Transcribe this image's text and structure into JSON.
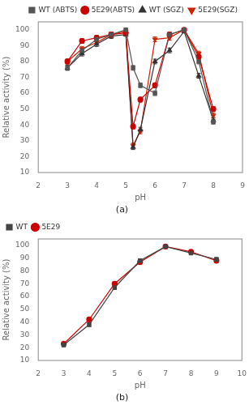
{
  "chart_data": [
    {
      "type": "line",
      "subtitle": "(a)",
      "xlabel": "pH",
      "ylabel": "Relative activity (%)",
      "x": [
        3.0,
        3.5,
        4.0,
        4.5,
        5.0,
        5.25,
        5.5,
        6.0,
        6.5,
        7.0,
        7.5,
        8.0
      ],
      "series": [
        {
          "name": "WT (ABTS)",
          "color": "#555555",
          "marker": "square",
          "line_style": "solid",
          "values": [
            76,
            87,
            94,
            97,
            100,
            76,
            65,
            60,
            97,
            100,
            80,
            42
          ],
          "errors": [
            1.5,
            1.5,
            1.5,
            1.5,
            1.0,
            1.5,
            1.5,
            1.5,
            1.5,
            1.0,
            1.5,
            1.5
          ]
        },
        {
          "name": "5E29(ABTS)",
          "color": "#cc0000",
          "marker": "circle",
          "line_style": "solid",
          "values": [
            80,
            93,
            95,
            97,
            98,
            39,
            56,
            65,
            97,
            100,
            83,
            50
          ],
          "errors": [
            1.5,
            1.5,
            1.5,
            1.5,
            1.0,
            1.5,
            1.5,
            1.5,
            1.5,
            1.0,
            1.5,
            1.5
          ]
        },
        {
          "name": "WT (SGZ)",
          "color": "#333333",
          "marker": "triangle-up",
          "line_style": "solid",
          "values": [
            76,
            85,
            91,
            96,
            97,
            26,
            37,
            80,
            87,
            99,
            71,
            43
          ],
          "errors": [
            1.5,
            1.5,
            1.5,
            1.5,
            1.0,
            1.5,
            1.5,
            1.5,
            1.5,
            1.0,
            1.5,
            1.5
          ]
        },
        {
          "name": "5E29(SGZ)",
          "color": "#cc2200",
          "marker": "triangle-down",
          "line_style": "solid",
          "values": [
            80,
            88,
            92,
            97,
            99,
            27,
            36,
            94,
            95,
            100,
            85,
            46
          ],
          "errors": [
            1.5,
            1.5,
            1.5,
            1.5,
            1.0,
            1.5,
            1.5,
            1.5,
            1.5,
            1.0,
            1.5,
            1.5
          ]
        }
      ],
      "xlim": [
        2,
        9
      ],
      "ylim": [
        10,
        105
      ],
      "xticks": [
        2,
        3,
        4,
        5,
        6,
        7,
        8,
        9
      ],
      "yticks": [
        10,
        20,
        30,
        40,
        50,
        60,
        70,
        80,
        90,
        100
      ],
      "legend": "upper right",
      "grid": false
    },
    {
      "type": "line",
      "subtitle": "(b)",
      "xlabel": "pH",
      "ylabel": "Relative activity (%)",
      "x": [
        3,
        4,
        5,
        6,
        7,
        8,
        9
      ],
      "series": [
        {
          "name": "WT",
          "color": "#444444",
          "marker": "square",
          "line_style": "solid",
          "values": [
            22,
            38,
            67,
            88,
            99,
            94,
            89
          ],
          "errors": [
            1.0,
            1.5,
            1.5,
            1.5,
            1.0,
            1.5,
            1.5
          ]
        },
        {
          "name": "5E29",
          "color": "#cc0000",
          "marker": "circle",
          "line_style": "solid",
          "values": [
            23,
            42,
            70,
            87,
            99,
            95,
            88
          ],
          "errors": [
            1.0,
            1.5,
            1.5,
            1.5,
            1.0,
            1.5,
            1.5
          ]
        }
      ],
      "xlim": [
        2,
        10
      ],
      "ylim": [
        10,
        105
      ],
      "xticks": [
        2,
        3,
        4,
        5,
        6,
        7,
        8,
        9,
        10
      ],
      "yticks": [
        10,
        20,
        30,
        40,
        50,
        60,
        70,
        80,
        90,
        100
      ],
      "legend": "upper left",
      "grid": false
    }
  ]
}
